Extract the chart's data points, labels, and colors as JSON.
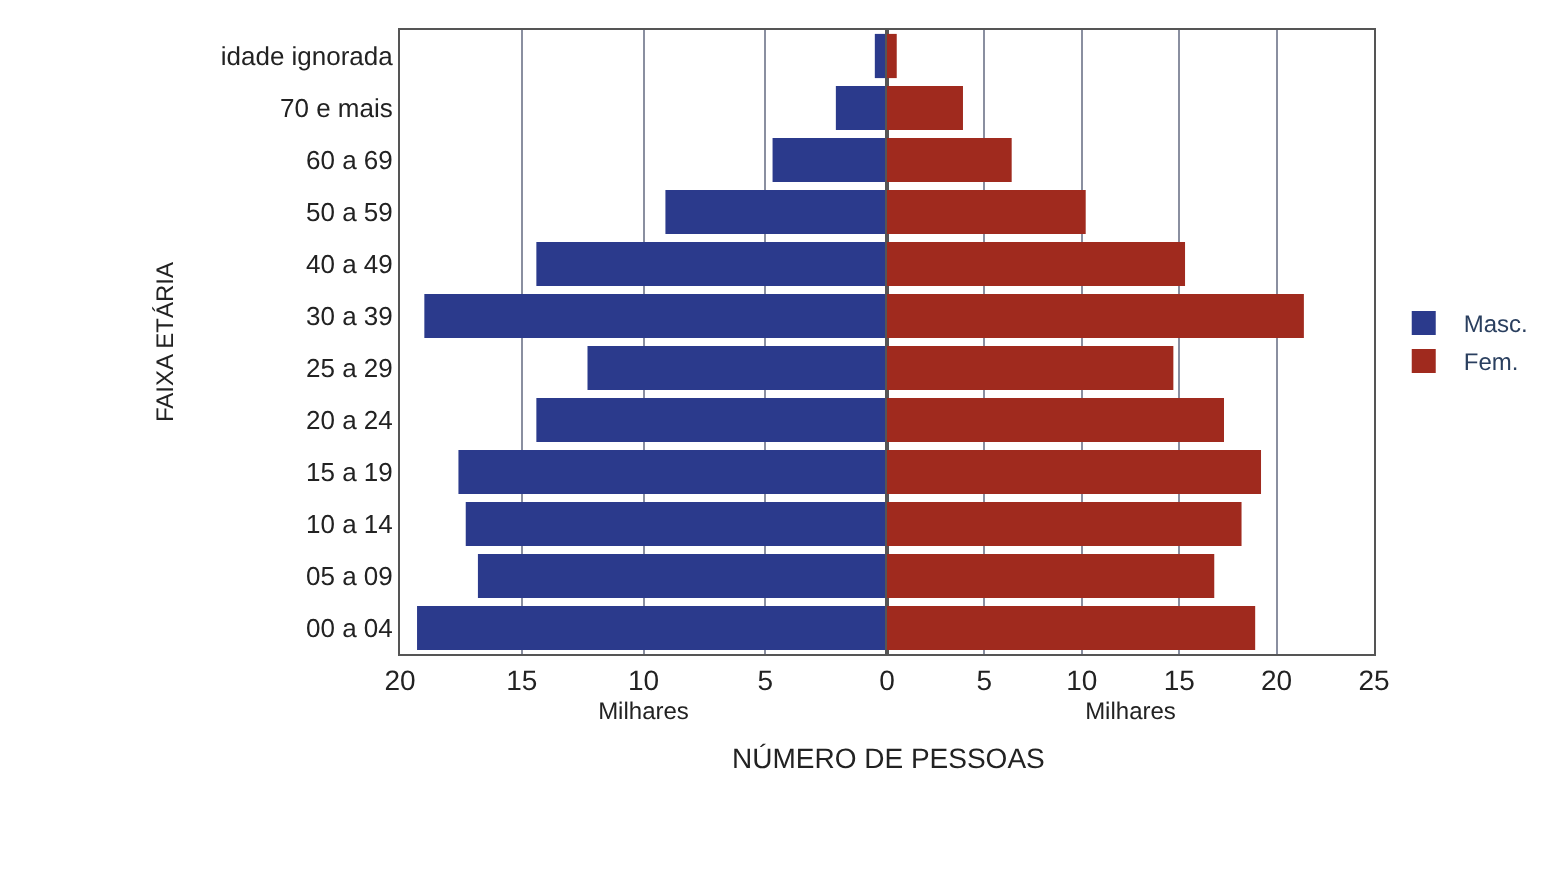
{
  "chart_data": [
    {
      "type": "bar",
      "orientation": "horizontal",
      "ylabel": "FAIXA ETÁRIA",
      "xlabel": "Milhares",
      "categories": [
        "idade ignorada",
        "70 e mais",
        "60 a 69",
        "50 a 59",
        "40 a 49",
        "30 a 39",
        "25 a 29",
        "20 a 24",
        "15 a 19",
        "10 a 14",
        "05 a 09",
        "00 a 04"
      ],
      "series": [
        {
          "name": "Masc.",
          "color": "#2b3a8c",
          "values": [
            0.5,
            2.1,
            4.7,
            9.1,
            14.4,
            19.0,
            12.3,
            14.4,
            17.6,
            17.3,
            16.8,
            19.3
          ]
        }
      ],
      "xlim": [
        20,
        0
      ],
      "xticks": [
        20,
        15,
        10,
        5,
        {
          "value": 0,
          "label": null
        }
      ],
      "grid": "x",
      "legend": "right",
      "annotations": [
        "NÚMERO DE PESSOAS"
      ]
    },
    {
      "type": "bar",
      "orientation": "horizontal",
      "xlabel": "Milhares",
      "series": [
        {
          "name": "Fem.",
          "color": "#a02a1e",
          "values": [
            0.5,
            3.9,
            6.4,
            10.2,
            15.3,
            21.4,
            14.7,
            17.3,
            19.2,
            18.2,
            16.8,
            18.9
          ]
        }
      ],
      "xlim": [
        0,
        25
      ],
      "xticks": [
        0,
        5,
        10,
        15,
        20,
        25
      ],
      "grid": "x",
      "legend": "right",
      "tick_labels": "x"
    }
  ]
}
